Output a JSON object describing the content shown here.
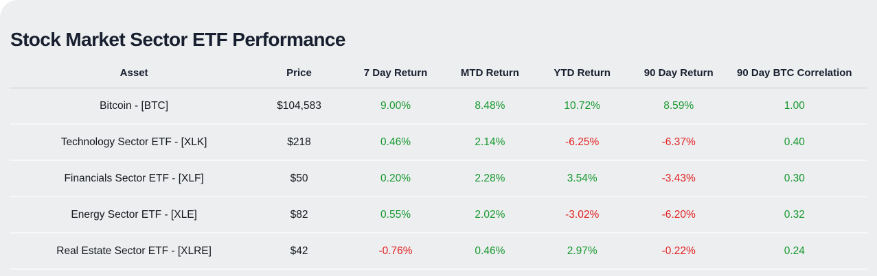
{
  "page": {
    "title": "Stock Market Sector ETF Performance"
  },
  "styles": {
    "positive_color": "#16982d",
    "negative_color": "#e32222",
    "title_color": "#171e2e",
    "panel_background": "#eceef0"
  },
  "chart_data": {
    "type": "table",
    "title": "Stock Market Sector ETF Performance",
    "columns": [
      "Asset",
      "Price",
      "7 Day Return",
      "MTD Return",
      "YTD Return",
      "90 Day Return",
      "90 Day BTC Correlation"
    ],
    "rows": [
      [
        "Bitcoin - [BTC]",
        "$104,583",
        "9.00%",
        "8.48%",
        "10.72%",
        "8.59%",
        "1.00"
      ],
      [
        "Technology Sector ETF - [XLK]",
        "$218",
        "0.46%",
        "2.14%",
        "-6.25%",
        "-6.37%",
        "0.40"
      ],
      [
        "Financials Sector ETF - [XLF]",
        "$50",
        "0.20%",
        "2.28%",
        "3.54%",
        "-3.43%",
        "0.30"
      ],
      [
        "Energy Sector ETF - [XLE]",
        "$82",
        "0.55%",
        "2.02%",
        "-3.02%",
        "-6.20%",
        "0.32"
      ],
      [
        "Real Estate Sector ETF - [XLRE]",
        "$42",
        "-0.76%",
        "0.46%",
        "2.97%",
        "-0.22%",
        "0.24"
      ]
    ],
    "layout": {
      "value_color_rule": "negative values red, non-negative green",
      "alignment": "center",
      "grid": "horizontal row separators only"
    }
  }
}
